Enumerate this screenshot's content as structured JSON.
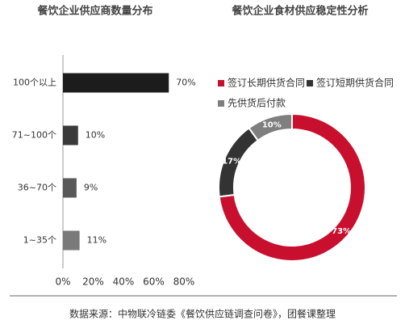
{
  "chart_data": [
    {
      "type": "bar",
      "orientation": "horizontal",
      "title": "餐饮企业供应商数量分布",
      "categories": [
        "100个以上",
        "71~100个",
        "36~70个",
        "1~35个"
      ],
      "values": [
        70,
        10,
        9,
        11
      ],
      "value_labels": [
        "70%",
        "10%",
        "9%",
        "11%"
      ],
      "colors": [
        "#1c1c1c",
        "#3a3a3a",
        "#595959",
        "#7a7a7a"
      ],
      "xlim": [
        0,
        80
      ],
      "xticks": [
        {
          "value": 0,
          "label": "0%"
        },
        {
          "value": 20,
          "label": "20%"
        },
        {
          "value": 40,
          "label": "40%"
        },
        {
          "value": 60,
          "label": "60%"
        },
        {
          "value": 80,
          "label": "80%"
        }
      ]
    },
    {
      "type": "donut",
      "title": "餐饮企业食材供应稳定性分析",
      "categories": [
        "签订长期供货合同",
        "签订短期供货合同",
        "先供货后付款"
      ],
      "values": [
        73,
        17,
        10
      ],
      "value_labels": [
        "73%",
        "17%",
        "10%"
      ],
      "colors": [
        "#c8102e",
        "#333333",
        "#7f7f7f"
      ]
    }
  ],
  "source": "数据来源：中物联冷链委《餐饮供应链调查问卷》，团餐课整理"
}
